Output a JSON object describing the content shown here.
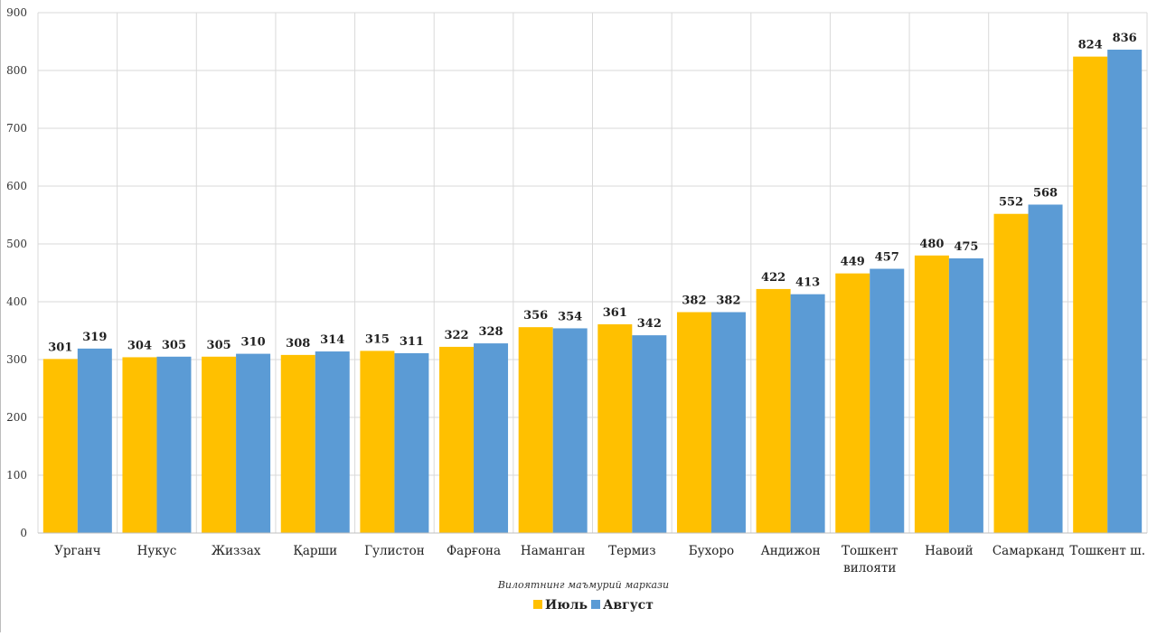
{
  "chart_data": {
    "type": "bar",
    "title": "",
    "xlabel": "Вилоятнинг маъмурий маркази",
    "ylabel": "",
    "ylim": [
      0,
      900
    ],
    "y_ticks": [
      "0",
      "100",
      "200",
      "300",
      "400",
      "500",
      "600",
      "700",
      "800",
      "900"
    ],
    "grid": true,
    "legend_position": "bottom",
    "categories": [
      [
        "Урганч"
      ],
      [
        "Нукус"
      ],
      [
        "Жиззах"
      ],
      [
        "Қарши"
      ],
      [
        "Гулистон"
      ],
      [
        "Фарғона"
      ],
      [
        "Наманган"
      ],
      [
        "Термиз"
      ],
      [
        "Бухоро"
      ],
      [
        "Андижон"
      ],
      [
        "Тошкент",
        "вилояти"
      ],
      [
        "Навоий"
      ],
      [
        "Самарканд"
      ],
      [
        "Тошкент ш."
      ]
    ],
    "series": [
      {
        "name": "Июль",
        "color": "#FFC000",
        "values": [
          301,
          304,
          305,
          308,
          315,
          322,
          356,
          361,
          382,
          422,
          449,
          480,
          552,
          824
        ]
      },
      {
        "name": "Август",
        "color": "#5B9BD5",
        "values": [
          319,
          305,
          310,
          314,
          311,
          328,
          354,
          342,
          382,
          413,
          457,
          475,
          568,
          836
        ]
      }
    ]
  }
}
